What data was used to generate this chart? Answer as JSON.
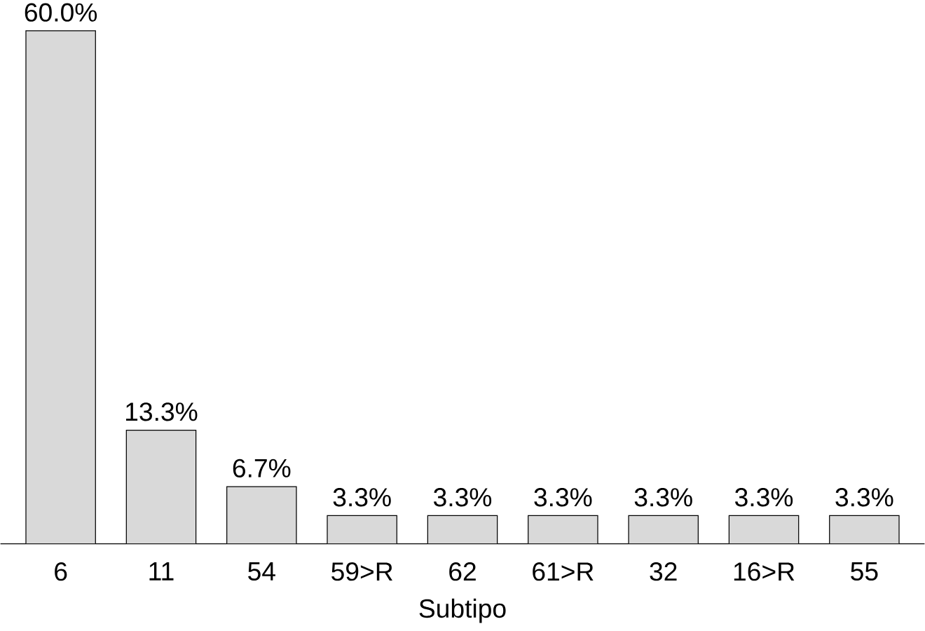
{
  "chart_data": {
    "type": "bar",
    "xlabel": "Subtipo",
    "categories": [
      "6",
      "11",
      "54",
      "59>R",
      "62",
      "61>R",
      "32",
      "16>R",
      "55"
    ],
    "values": [
      60.0,
      13.3,
      6.7,
      3.3,
      3.3,
      3.3,
      3.3,
      3.3,
      3.3
    ],
    "value_labels": [
      "60.0%",
      "13.3%",
      "6.7%",
      "3.3%",
      "3.3%",
      "3.3%",
      "3.3%",
      "3.3%",
      "3.3%"
    ],
    "color": "#d9d9d9"
  }
}
